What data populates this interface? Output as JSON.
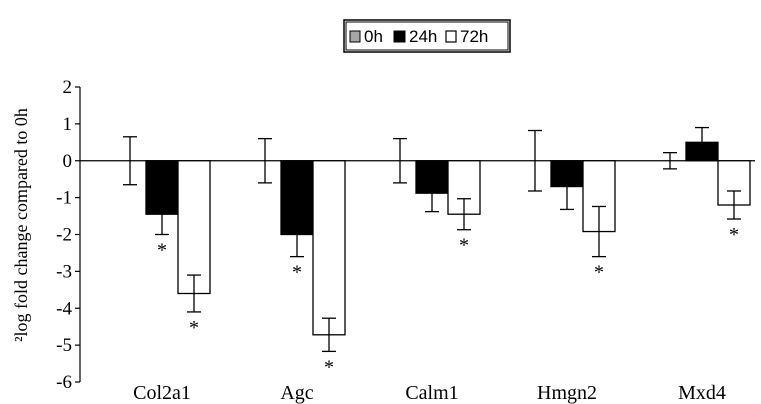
{
  "chart_data": {
    "type": "bar",
    "title": "",
    "xlabel": "",
    "ylabel": "²log fold change compared to 0h",
    "ylim": [
      -6,
      2
    ],
    "yticks": [
      2,
      1,
      0,
      -1,
      -2,
      -3,
      -4,
      -5,
      -6
    ],
    "ytick_labels": [
      "2",
      "1",
      "0",
      "-1",
      "-2",
      "-3",
      "-4",
      "-5",
      "-6"
    ],
    "categories": [
      "Col2a1",
      "Agc",
      "Calm1",
      "Hmgn2",
      "Mxd4"
    ],
    "legend_position": "top-center",
    "grid": false,
    "series": [
      {
        "name": "0h",
        "color": "#a6a6a6",
        "values": [
          0,
          0,
          0,
          0,
          0
        ],
        "errors": [
          0.65,
          0.6,
          0.6,
          0.82,
          0.22
        ]
      },
      {
        "name": "24h",
        "color": "#000000",
        "values": [
          -1.45,
          -2.0,
          -0.88,
          -0.7,
          0.5
        ],
        "errors": [
          0.55,
          0.6,
          0.5,
          0.62,
          0.4
        ]
      },
      {
        "name": "72h",
        "color": "#ffffff",
        "values": [
          -3.6,
          -4.72,
          -1.45,
          -1.92,
          -1.2
        ],
        "errors": [
          0.5,
          0.45,
          0.42,
          0.68,
          0.38
        ]
      }
    ],
    "significance_marker": "*",
    "significant": [
      {
        "series": "24h",
        "category": "Col2a1"
      },
      {
        "series": "72h",
        "category": "Col2a1"
      },
      {
        "series": "24h",
        "category": "Agc"
      },
      {
        "series": "72h",
        "category": "Agc"
      },
      {
        "series": "72h",
        "category": "Calm1"
      },
      {
        "series": "72h",
        "category": "Hmgn2"
      },
      {
        "series": "72h",
        "category": "Mxd4"
      }
    ]
  }
}
